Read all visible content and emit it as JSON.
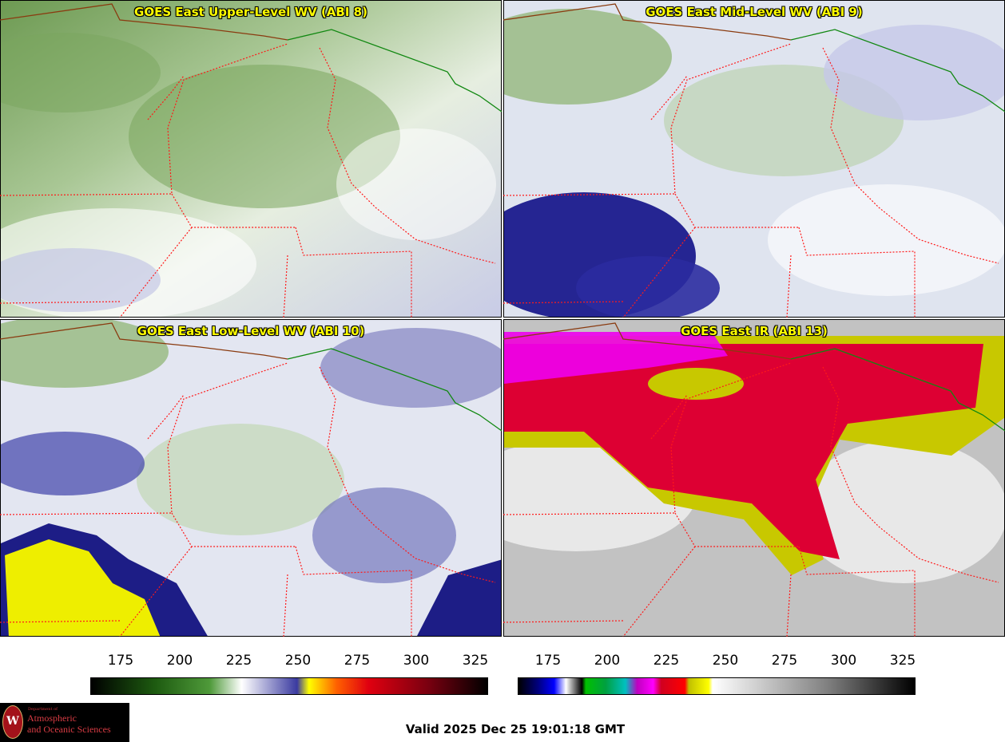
{
  "panels": [
    {
      "title": "GOES East Upper-Level WV (ABI 8)"
    },
    {
      "title": "GOES East Mid-Level WV (ABI 9)"
    },
    {
      "title": "GOES East Low-Level WV (ABI 10)"
    },
    {
      "title": "GOES East IR (ABI 13)"
    }
  ],
  "colorbars": [
    {
      "name": "water-vapor-colorbar",
      "ticks": [
        "175",
        "200",
        "225",
        "250",
        "275",
        "300",
        "325"
      ]
    },
    {
      "name": "ir-colorbar",
      "ticks": [
        "175",
        "200",
        "225",
        "250",
        "275",
        "300",
        "325"
      ]
    }
  ],
  "logo": {
    "dept": "Department of",
    "line1": "Atmospheric",
    "line2": "and Oceanic Sciences",
    "seal_letter": "W"
  },
  "valid_time": "Valid 2025 Dec 25 19:01:18 GMT",
  "colors": {
    "state_border": "#ff1a1a",
    "country_border": "#118811",
    "coast": "#8a3b10",
    "title": "#ffff00"
  }
}
